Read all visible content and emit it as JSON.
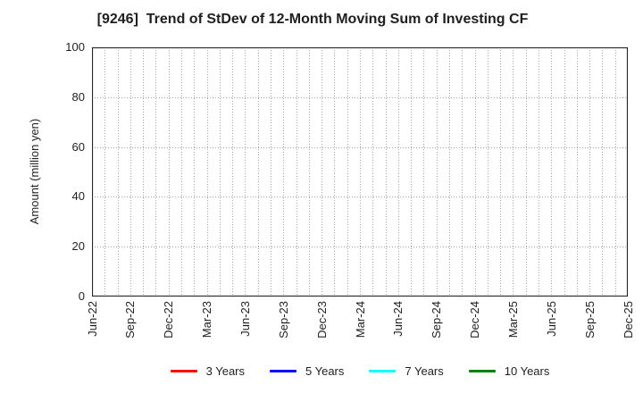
{
  "chart_data": {
    "type": "line",
    "title": "[9246]  Trend of StDev of 12-Month Moving Sum of Investing CF",
    "xlabel": "",
    "ylabel": "Amount (million yen)",
    "ylim": [
      0,
      100
    ],
    "yticks": [
      0,
      20,
      40,
      60,
      80,
      100
    ],
    "x_tick_labels": [
      "Jun-22",
      "Sep-22",
      "Dec-22",
      "Mar-23",
      "Jun-23",
      "Sep-23",
      "Dec-23",
      "Mar-24",
      "Jun-24",
      "Sep-24",
      "Dec-24",
      "Mar-25",
      "Jun-25",
      "Sep-25",
      "Dec-25"
    ],
    "x_minor_gridlines_per_label_interval": 3,
    "grid": "dotted",
    "grid_on": true,
    "legend_position": "bottom-center",
    "series": [
      {
        "name": "3 Years",
        "color": "#ff0000",
        "values": []
      },
      {
        "name": "5 Years",
        "color": "#0000ff",
        "values": []
      },
      {
        "name": "7 Years",
        "color": "#00ffff",
        "values": []
      },
      {
        "name": "10 Years",
        "color": "#008000",
        "values": []
      }
    ]
  },
  "colors": {
    "background": "#ffffff",
    "spine": "#262626",
    "grid": "#a3a3a3",
    "text": "#1f1f1f"
  }
}
